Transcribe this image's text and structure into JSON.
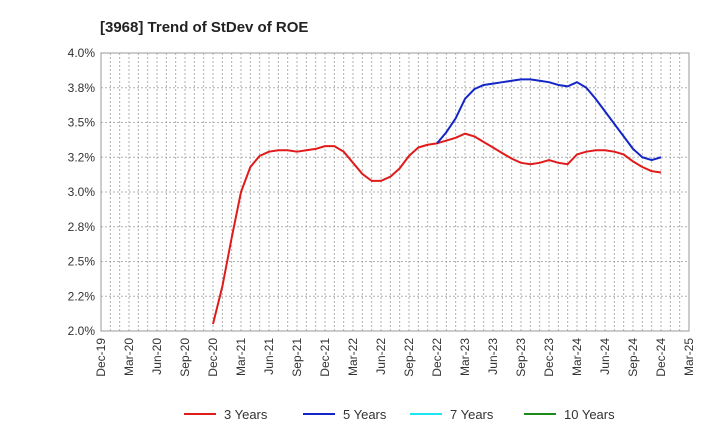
{
  "chart_data": {
    "type": "line",
    "title": "[3968]  Trend of StDev of ROE",
    "xlabel": "",
    "ylabel": "",
    "x_ticks": [
      "Dec-19",
      "Mar-20",
      "Jun-20",
      "Sep-20",
      "Dec-20",
      "Mar-21",
      "Jun-21",
      "Sep-21",
      "Dec-21",
      "Mar-22",
      "Jun-22",
      "Sep-22",
      "Dec-22",
      "Mar-23",
      "Jun-23",
      "Sep-23",
      "Dec-23",
      "Mar-24",
      "Jun-24",
      "Sep-24",
      "Dec-24",
      "Mar-25"
    ],
    "y_ticks": [
      "2.0%",
      "2.2%",
      "2.5%",
      "2.8%",
      "3.0%",
      "3.2%",
      "3.5%",
      "3.8%",
      "4.0%"
    ],
    "ylim": [
      2.0,
      4.0
    ],
    "y_unit": "%",
    "grid": true,
    "legend_position": "bottom",
    "series": [
      {
        "name": "3 Years",
        "color": "#e01b1b",
        "x": [
          "Dec-20",
          "Jan-21",
          "Feb-21",
          "Mar-21",
          "Apr-21",
          "May-21",
          "Jun-21",
          "Jul-21",
          "Aug-21",
          "Sep-21",
          "Oct-21",
          "Nov-21",
          "Dec-21",
          "Jan-22",
          "Feb-22",
          "Mar-22",
          "Apr-22",
          "May-22",
          "Jun-22",
          "Jul-22",
          "Aug-22",
          "Sep-22",
          "Oct-22",
          "Nov-22",
          "Dec-22",
          "Jan-23",
          "Feb-23",
          "Mar-23",
          "Apr-23",
          "May-23",
          "Jun-23",
          "Jul-23",
          "Aug-23",
          "Sep-23",
          "Oct-23",
          "Nov-23",
          "Dec-23",
          "Jan-24",
          "Feb-24",
          "Mar-24",
          "Apr-24",
          "May-24",
          "Jun-24",
          "Jul-24",
          "Aug-24",
          "Sep-24",
          "Oct-24",
          "Nov-24",
          "Dec-24"
        ],
        "values": [
          2.05,
          2.32,
          2.67,
          3.0,
          3.18,
          3.26,
          3.29,
          3.3,
          3.3,
          3.29,
          3.3,
          3.31,
          3.33,
          3.33,
          3.29,
          3.21,
          3.13,
          3.08,
          3.08,
          3.11,
          3.17,
          3.26,
          3.32,
          3.34,
          3.35,
          3.37,
          3.39,
          3.42,
          3.4,
          3.36,
          3.32,
          3.28,
          3.24,
          3.21,
          3.2,
          3.21,
          3.23,
          3.21,
          3.2,
          3.27,
          3.29,
          3.3,
          3.3,
          3.29,
          3.27,
          3.22,
          3.18,
          3.15,
          3.14
        ]
      },
      {
        "name": "5 Years",
        "color": "#1426c8",
        "x": [
          "Dec-22",
          "Jan-23",
          "Feb-23",
          "Mar-23",
          "Apr-23",
          "May-23",
          "Jun-23",
          "Jul-23",
          "Aug-23",
          "Sep-23",
          "Oct-23",
          "Nov-23",
          "Dec-23",
          "Jan-24",
          "Feb-24",
          "Mar-24",
          "Apr-24",
          "May-24",
          "Jun-24",
          "Jul-24",
          "Aug-24",
          "Sep-24",
          "Oct-24",
          "Nov-24",
          "Dec-24"
        ],
        "values": [
          3.35,
          3.43,
          3.53,
          3.67,
          3.74,
          3.77,
          3.78,
          3.79,
          3.8,
          3.81,
          3.81,
          3.8,
          3.79,
          3.77,
          3.76,
          3.79,
          3.75,
          3.67,
          3.58,
          3.49,
          3.4,
          3.31,
          3.25,
          3.23,
          3.25
        ]
      },
      {
        "name": "7 Years",
        "color": "#1ee6f0",
        "x": [],
        "values": []
      },
      {
        "name": "10 Years",
        "color": "#1b8a1b",
        "x": [],
        "values": []
      }
    ]
  }
}
